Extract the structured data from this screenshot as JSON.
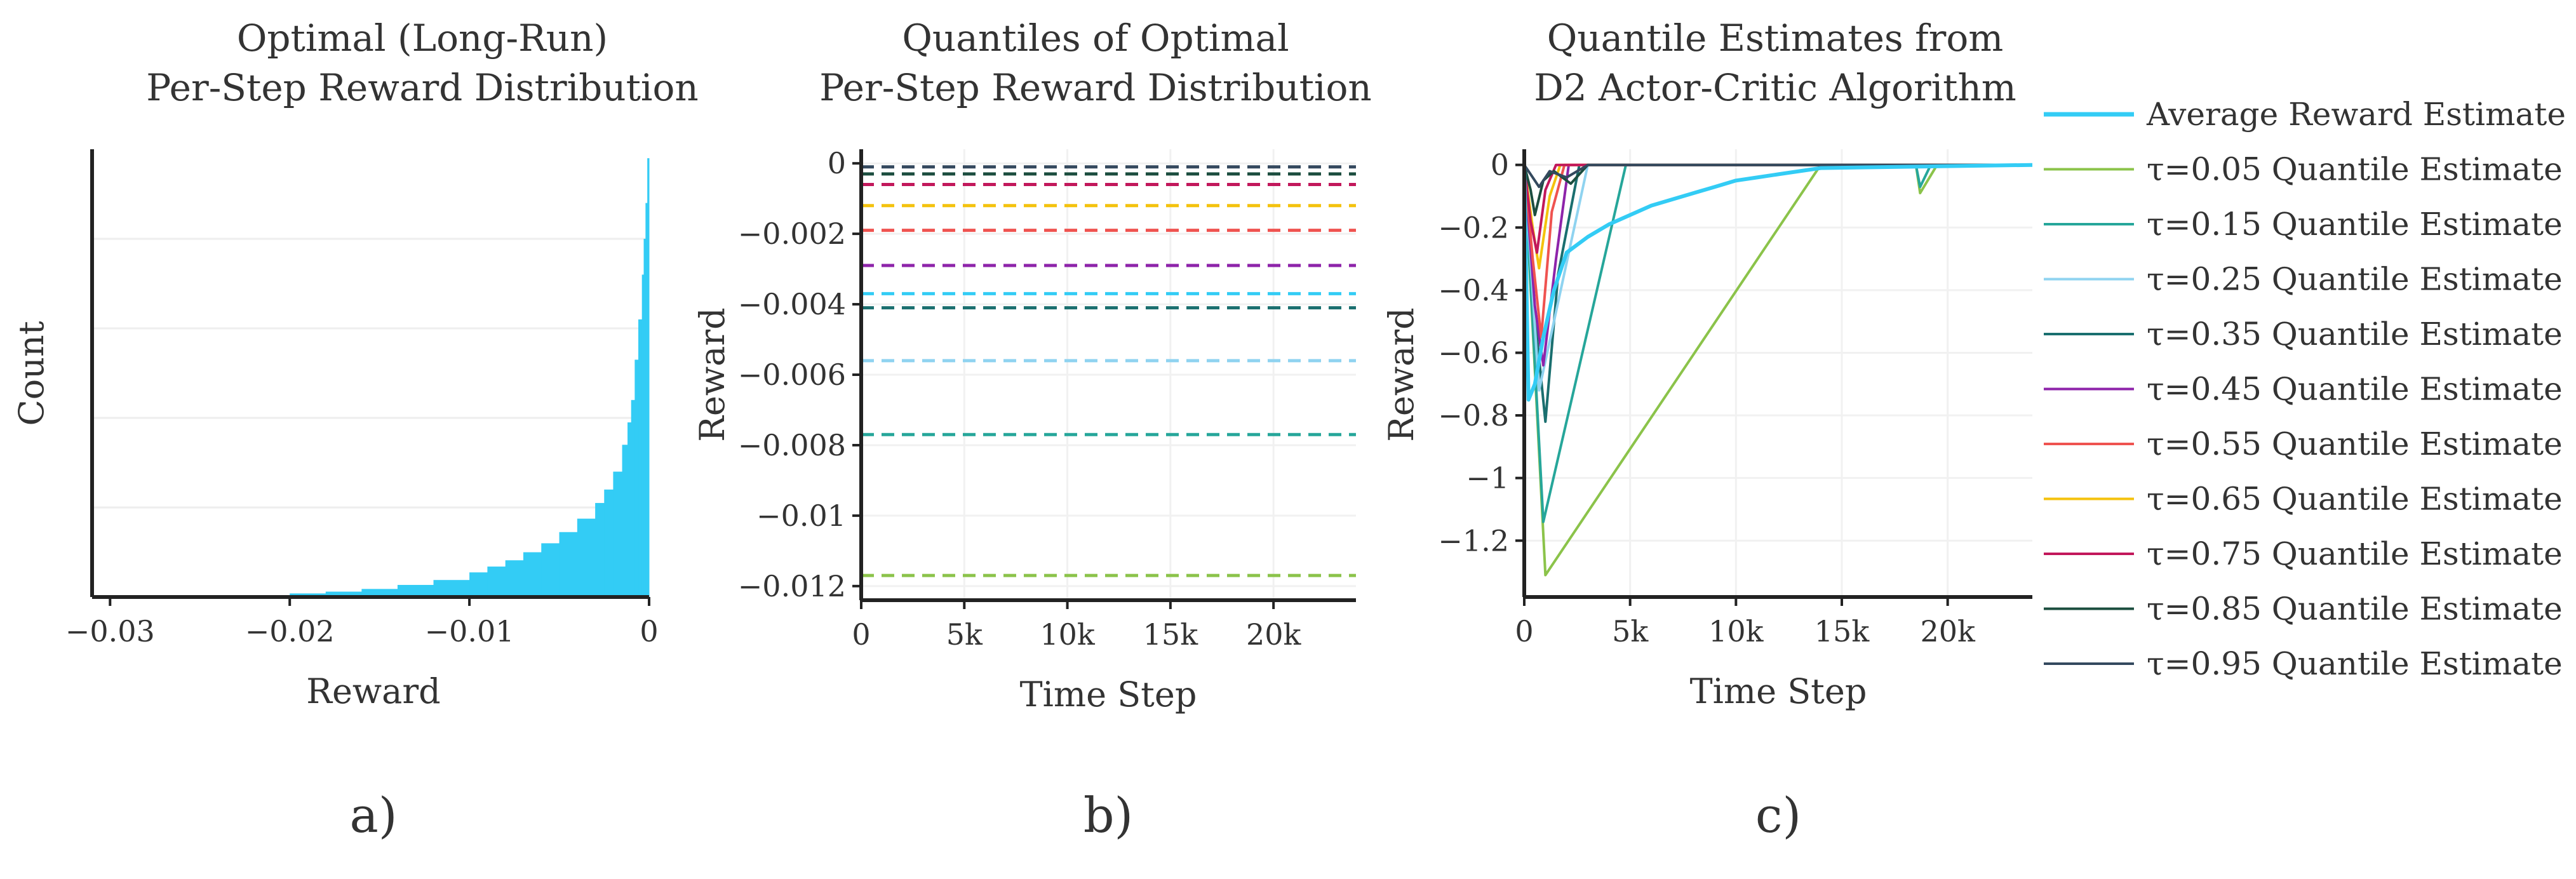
{
  "chart_data": [
    {
      "id": "a",
      "type": "histogram",
      "panel_label": "a)",
      "title": [
        "Optimal (Long-Run)",
        "Per-Step Reward Distribution"
      ],
      "xlabel": "Reward",
      "ylabel": "Count",
      "xlim": [
        -0.031,
        0.0
      ],
      "ylim": [
        0,
        1.0
      ],
      "xticks": [
        -0.03,
        -0.02,
        -0.01,
        0
      ],
      "xtick_labels": [
        "−0.03",
        "−0.02",
        "−0.01",
        "0"
      ],
      "color": "#33ccf5",
      "bins_x": [
        -0.03,
        -0.025,
        -0.02,
        -0.018,
        -0.016,
        -0.014,
        -0.012,
        -0.01,
        -0.009,
        -0.008,
        -0.007,
        -0.006,
        -0.005,
        -0.004,
        -0.003,
        -0.0025,
        -0.002,
        -0.0015,
        -0.0012,
        -0.001,
        -0.0008,
        -0.0006,
        -0.0004,
        -0.0003,
        -0.0002,
        -0.0001,
        0.0
      ],
      "bins_y": [
        0.0,
        0.003,
        0.008,
        0.012,
        0.018,
        0.027,
        0.038,
        0.055,
        0.068,
        0.082,
        0.1,
        0.12,
        0.145,
        0.175,
        0.21,
        0.24,
        0.28,
        0.34,
        0.39,
        0.44,
        0.53,
        0.62,
        0.72,
        0.8,
        0.88,
        0.98,
        0.98
      ]
    },
    {
      "id": "b",
      "type": "line",
      "panel_label": "b)",
      "title": [
        "Quantiles of Optimal",
        "Per-Step Reward Distribution"
      ],
      "xlabel": "Time Step",
      "ylabel": "Reward",
      "xlim": [
        0,
        24000
      ],
      "ylim": [
        -0.0124,
        0.0004
      ],
      "xticks": [
        0,
        5000,
        10000,
        15000,
        20000
      ],
      "xtick_labels": [
        "0",
        "5k",
        "10k",
        "15k",
        "20k"
      ],
      "yticks": [
        0,
        -0.002,
        -0.004,
        -0.006,
        -0.008,
        -0.01,
        -0.012
      ],
      "ytick_labels": [
        "0",
        "−0.002",
        "−0.004",
        "−0.006",
        "−0.008",
        "−0.01",
        "−0.012"
      ],
      "series": [
        {
          "name": "τ=0.05",
          "color": "#8bc34a",
          "value": -0.0117
        },
        {
          "name": "τ=0.15",
          "color": "#26a69a",
          "value": -0.0077
        },
        {
          "name": "τ=0.25",
          "color": "#8fd3f0",
          "value": -0.0056
        },
        {
          "name": "τ=0.35",
          "color": "#1a6f6f",
          "value": -0.0041
        },
        {
          "name": "τ=0.45",
          "color": "#8e24aa",
          "value": -0.0029
        },
        {
          "name": "τ=0.55",
          "color": "#ef5350",
          "value": -0.0019
        },
        {
          "name": "τ=0.65",
          "color": "#f4c20d",
          "value": -0.0012
        },
        {
          "name": "τ=0.75",
          "color": "#c2185b",
          "value": -0.0006
        },
        {
          "name": "τ=0.85",
          "color": "#1b4d3e",
          "value": -0.0003
        },
        {
          "name": "τ=0.95",
          "color": "#34495e",
          "value": -0.0001
        },
        {
          "name": "Average",
          "color": "#33ccf5",
          "value": -0.0037
        }
      ]
    },
    {
      "id": "c",
      "type": "line",
      "panel_label": "c)",
      "title": [
        "Quantile Estimates from",
        "D2 Actor-Critic Algorithm"
      ],
      "xlabel": "Time Step",
      "ylabel": "Reward",
      "xlim": [
        0,
        24000
      ],
      "ylim": [
        -1.38,
        0.05
      ],
      "xticks": [
        0,
        5000,
        10000,
        15000,
        20000
      ],
      "xtick_labels": [
        "0",
        "5k",
        "10k",
        "15k",
        "20k"
      ],
      "yticks": [
        0,
        -0.2,
        -0.4,
        -0.6,
        -0.8,
        -1,
        -1.2
      ],
      "ytick_labels": [
        "0",
        "−0.2",
        "−0.4",
        "−0.6",
        "−0.8",
        "−1",
        "−1.2"
      ],
      "series": [
        {
          "name": "τ=0.05 Quantile Estimate",
          "color": "#8bc34a",
          "x": [
            0,
            1000,
            14000,
            18500,
            18700,
            19500,
            24000
          ],
          "y": [
            0,
            -1.31,
            0,
            0,
            -0.09,
            0,
            0
          ]
        },
        {
          "name": "τ=0.15 Quantile Estimate",
          "color": "#26a69a",
          "x": [
            0,
            900,
            4800,
            18500,
            18700,
            19200,
            24000
          ],
          "y": [
            0,
            -1.14,
            0,
            0,
            -0.07,
            0,
            0
          ]
        },
        {
          "name": "τ=0.35 Quantile Estimate",
          "color": "#1a6f6f",
          "x": [
            0,
            600,
            1000,
            1600,
            2600,
            24000
          ],
          "y": [
            0,
            -0.55,
            -0.82,
            -0.35,
            0,
            0
          ]
        },
        {
          "name": "τ=0.25 Quantile Estimate",
          "color": "#8fd3f0",
          "x": [
            0,
            700,
            3000,
            24000
          ],
          "y": [
            0,
            -0.72,
            0,
            0
          ]
        },
        {
          "name": "τ=0.45 Quantile Estimate",
          "color": "#8e24aa",
          "x": [
            0,
            500,
            900,
            1500,
            2100,
            24000
          ],
          "y": [
            0,
            -0.45,
            -0.64,
            -0.3,
            0,
            0
          ]
        },
        {
          "name": "τ=0.55 Quantile Estimate",
          "color": "#ef5350",
          "x": [
            0,
            400,
            800,
            1300,
            1900,
            24000
          ],
          "y": [
            0,
            -0.3,
            -0.55,
            -0.15,
            0,
            0
          ]
        },
        {
          "name": "τ=0.65 Quantile Estimate",
          "color": "#f4c20d",
          "x": [
            0,
            400,
            700,
            1200,
            1700,
            24000
          ],
          "y": [
            0,
            -0.2,
            -0.33,
            -0.1,
            0,
            0
          ]
        },
        {
          "name": "τ=0.75 Quantile Estimate",
          "color": "#c2185b",
          "x": [
            0,
            300,
            600,
            1000,
            1500,
            24000
          ],
          "y": [
            0,
            -0.18,
            -0.28,
            -0.08,
            0,
            0
          ]
        },
        {
          "name": "τ=0.85 Quantile Estimate",
          "color": "#1b4d3e",
          "x": [
            0,
            300,
            500,
            900,
            1400,
            2200,
            3000,
            24000
          ],
          "y": [
            0,
            -0.08,
            -0.16,
            -0.05,
            -0.02,
            -0.06,
            0,
            0
          ]
        },
        {
          "name": "τ=0.95 Quantile Estimate",
          "color": "#34495e",
          "x": [
            0,
            300,
            700,
            1200,
            2000,
            3000,
            24000
          ],
          "y": [
            0,
            -0.03,
            -0.07,
            -0.02,
            -0.04,
            0,
            0
          ]
        },
        {
          "name": "Average Reward Estimate",
          "color": "#33ccf5",
          "x": [
            0,
            200,
            500,
            900,
            1400,
            2000,
            3000,
            4000,
            5000,
            6000,
            7000,
            8000,
            9000,
            10000,
            11000,
            12000,
            13000,
            14000,
            24000
          ],
          "y": [
            0,
            -0.75,
            -0.7,
            -0.55,
            -0.4,
            -0.28,
            -0.23,
            -0.19,
            -0.16,
            -0.13,
            -0.11,
            -0.09,
            -0.07,
            -0.05,
            -0.04,
            -0.03,
            -0.02,
            -0.01,
            0
          ]
        }
      ]
    }
  ],
  "legend": {
    "position": "right",
    "items": [
      {
        "label": "Average Reward Estimate",
        "color": "#33ccf5",
        "thick": true
      },
      {
        "label": "τ=0.05 Quantile Estimate",
        "color": "#8bc34a"
      },
      {
        "label": "τ=0.15 Quantile Estimate",
        "color": "#26a69a"
      },
      {
        "label": "τ=0.25 Quantile Estimate",
        "color": "#8fd3f0"
      },
      {
        "label": "τ=0.35 Quantile Estimate",
        "color": "#1a6f6f"
      },
      {
        "label": "τ=0.45 Quantile Estimate",
        "color": "#8e24aa"
      },
      {
        "label": "τ=0.55 Quantile Estimate",
        "color": "#ef5350"
      },
      {
        "label": "τ=0.65 Quantile Estimate",
        "color": "#f4c20d"
      },
      {
        "label": "τ=0.75 Quantile Estimate",
        "color": "#c2185b"
      },
      {
        "label": "τ=0.85 Quantile Estimate",
        "color": "#1b4d3e"
      },
      {
        "label": "τ=0.95 Quantile Estimate",
        "color": "#34495e"
      }
    ]
  }
}
